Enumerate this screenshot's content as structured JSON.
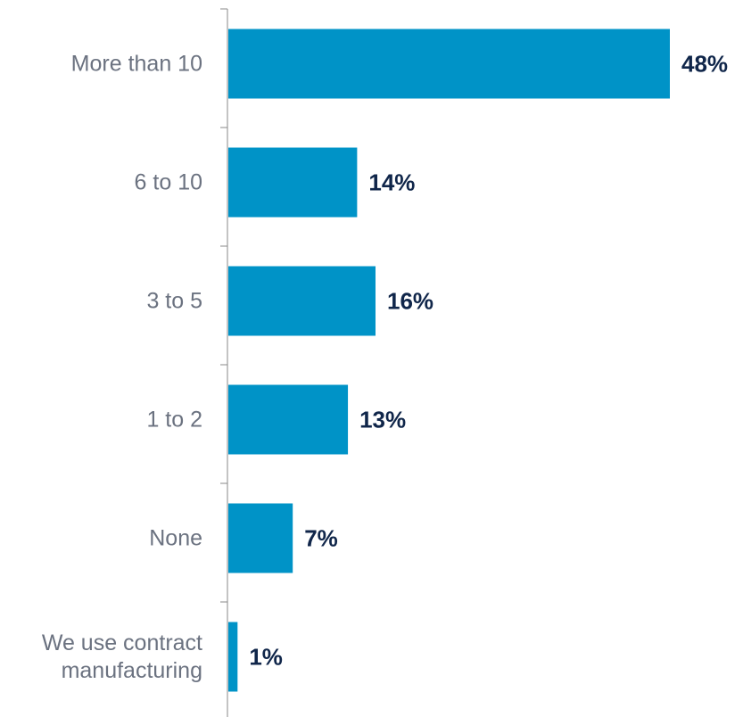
{
  "chart_data": {
    "type": "bar",
    "orientation": "horizontal",
    "title": "",
    "xlabel": "",
    "ylabel": "",
    "xlim": [
      0,
      48
    ],
    "categories": [
      "More than 10",
      "6 to 10",
      "3 to 5",
      "1 to 2",
      "None",
      "We use contract manufacturing"
    ],
    "category_lines": [
      [
        "More than 10"
      ],
      [
        "6 to 10"
      ],
      [
        "3 to 5"
      ],
      [
        "1 to 2"
      ],
      [
        "None"
      ],
      [
        "We use contract",
        "manufacturing"
      ]
    ],
    "values": [
      48,
      14,
      16,
      13,
      7,
      1
    ],
    "labels": [
      "48%",
      "14%",
      "16%",
      "13%",
      "7%",
      "1%"
    ],
    "grid": false,
    "legend": "none",
    "colors": {
      "bar": "#0093c7",
      "value_label": "#10264a",
      "category_label": "#6b7280",
      "axis": "#8a8a8a"
    }
  }
}
